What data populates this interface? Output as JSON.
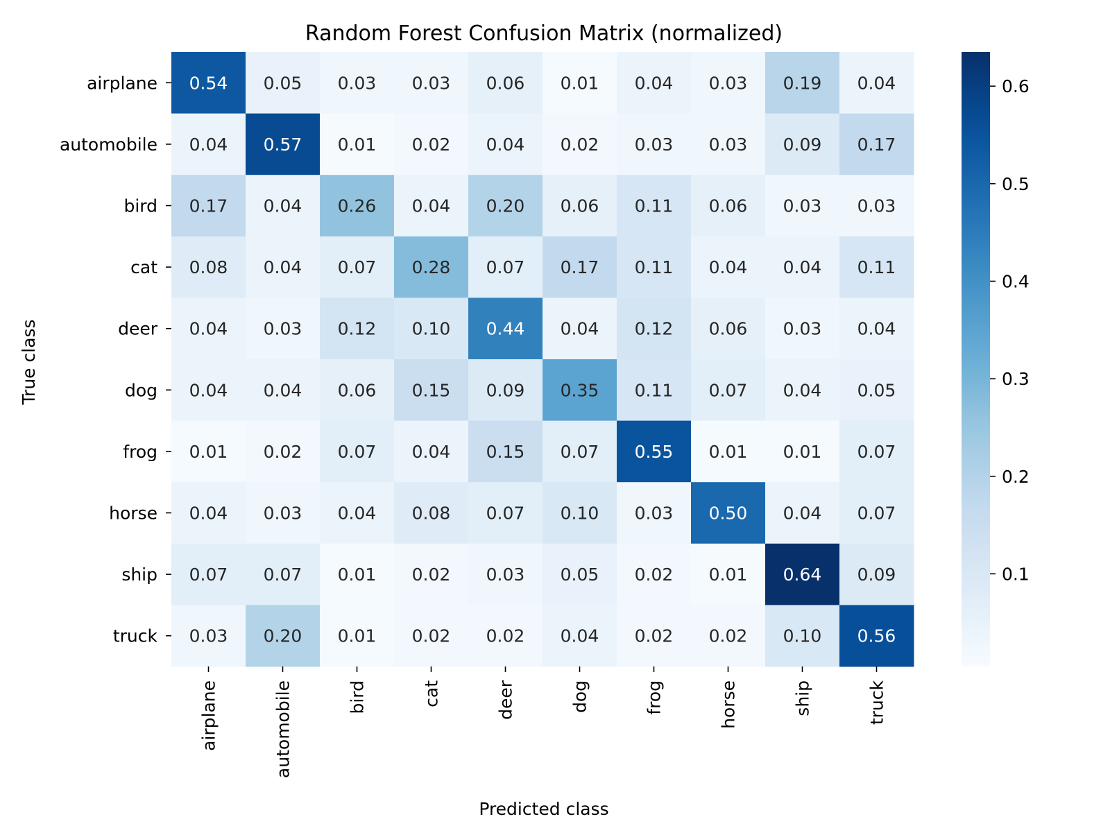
{
  "chart_data": {
    "type": "heatmap",
    "title": "Random Forest Confusion Matrix (normalized)",
    "xlabel": "Predicted class",
    "ylabel": "True class",
    "x_categories": [
      "airplane",
      "automobile",
      "bird",
      "cat",
      "deer",
      "dog",
      "frog",
      "horse",
      "ship",
      "truck"
    ],
    "y_categories": [
      "airplane",
      "automobile",
      "bird",
      "cat",
      "deer",
      "dog",
      "frog",
      "horse",
      "ship",
      "truck"
    ],
    "values": [
      [
        0.54,
        0.05,
        0.03,
        0.03,
        0.06,
        0.01,
        0.04,
        0.03,
        0.19,
        0.04
      ],
      [
        0.04,
        0.57,
        0.01,
        0.02,
        0.04,
        0.02,
        0.03,
        0.03,
        0.09,
        0.17
      ],
      [
        0.17,
        0.04,
        0.26,
        0.04,
        0.2,
        0.06,
        0.11,
        0.06,
        0.03,
        0.03
      ],
      [
        0.08,
        0.04,
        0.07,
        0.28,
        0.07,
        0.17,
        0.11,
        0.04,
        0.04,
        0.11
      ],
      [
        0.04,
        0.03,
        0.12,
        0.1,
        0.44,
        0.04,
        0.12,
        0.06,
        0.03,
        0.04
      ],
      [
        0.04,
        0.04,
        0.06,
        0.15,
        0.09,
        0.35,
        0.11,
        0.07,
        0.04,
        0.05
      ],
      [
        0.01,
        0.02,
        0.07,
        0.04,
        0.15,
        0.07,
        0.55,
        0.01,
        0.01,
        0.07
      ],
      [
        0.04,
        0.03,
        0.04,
        0.08,
        0.07,
        0.1,
        0.03,
        0.5,
        0.04,
        0.07
      ],
      [
        0.07,
        0.07,
        0.01,
        0.02,
        0.03,
        0.05,
        0.02,
        0.01,
        0.64,
        0.09
      ],
      [
        0.03,
        0.2,
        0.01,
        0.02,
        0.02,
        0.04,
        0.02,
        0.02,
        0.1,
        0.56
      ]
    ],
    "colorscale": "Blues",
    "colorbar": {
      "range": [
        0.005,
        0.635
      ],
      "ticks": [
        0.1,
        0.2,
        0.3,
        0.4,
        0.5,
        0.6
      ],
      "tick_labels": [
        "0.1",
        "0.2",
        "0.3",
        "0.4",
        "0.5",
        "0.6"
      ]
    },
    "annotations_format": "0.00",
    "grid": false,
    "legend": "colorbar-right"
  }
}
